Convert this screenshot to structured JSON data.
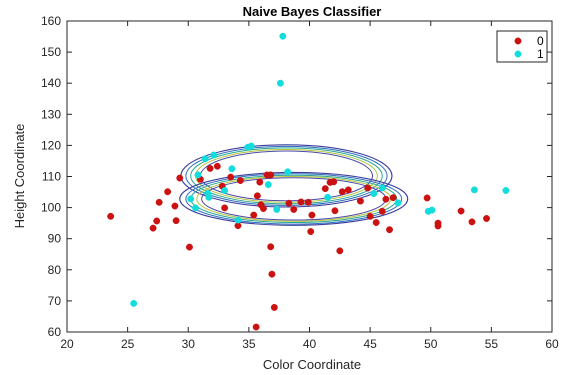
{
  "chart_data": {
    "type": "scatter",
    "title": "Naive Bayes Classifier",
    "xlabel": "Color Coordinate",
    "ylabel": "Height Coordinate",
    "xlim": [
      20,
      60
    ],
    "ylim": [
      60,
      160
    ],
    "xticks": [
      "20",
      "25",
      "30",
      "35",
      "40",
      "45",
      "50",
      "55",
      "60"
    ],
    "yticks": [
      "60",
      "70",
      "80",
      "90",
      "100",
      "110",
      "120",
      "130",
      "140",
      "150",
      "160"
    ],
    "grid": false,
    "legend_position": "top-right",
    "series": [
      {
        "name": "0",
        "color": "#cc1111",
        "marker": "filled-circle",
        "points": [
          [
            23.6,
            97.2
          ],
          [
            27.1,
            93.4
          ],
          [
            27.4,
            95.7
          ],
          [
            27.6,
            101.7
          ],
          [
            28.3,
            105.1
          ],
          [
            28.9,
            100.5
          ],
          [
            29.0,
            95.8
          ],
          [
            29.3,
            109.5
          ],
          [
            30.1,
            87.3
          ],
          [
            31.0,
            109.1
          ],
          [
            31.8,
            112.6
          ],
          [
            32.4,
            113.3
          ],
          [
            32.8,
            106.9
          ],
          [
            33.0,
            99.9
          ],
          [
            33.5,
            109.8
          ],
          [
            34.1,
            94.2
          ],
          [
            34.3,
            108.7
          ],
          [
            35.4,
            97.6
          ],
          [
            35.7,
            103.8
          ],
          [
            35.9,
            108.2
          ],
          [
            36.0,
            100.9
          ],
          [
            36.2,
            99.7
          ],
          [
            36.5,
            110.5
          ],
          [
            36.8,
            110.5
          ],
          [
            36.8,
            87.4
          ],
          [
            36.9,
            78.6
          ],
          [
            37.1,
            67.9
          ],
          [
            35.6,
            61.6
          ],
          [
            38.3,
            101.4
          ],
          [
            38.7,
            99.4
          ],
          [
            39.3,
            101.8
          ],
          [
            39.9,
            101.7
          ],
          [
            40.1,
            92.3
          ],
          [
            40.2,
            97.6
          ],
          [
            41.3,
            106.1
          ],
          [
            41.7,
            108.1
          ],
          [
            42.0,
            108.3
          ],
          [
            42.1,
            99.0
          ],
          [
            42.5,
            86.1
          ],
          [
            42.7,
            105.1
          ],
          [
            43.2,
            105.7
          ],
          [
            44.2,
            102.1
          ],
          [
            44.8,
            106.3
          ],
          [
            45.0,
            97.2
          ],
          [
            45.5,
            95.2
          ],
          [
            46.0,
            98.8
          ],
          [
            46.3,
            102.7
          ],
          [
            46.6,
            92.9
          ],
          [
            46.9,
            103.2
          ],
          [
            49.7,
            103.1
          ],
          [
            50.6,
            94.1
          ],
          [
            50.6,
            95.0
          ],
          [
            52.5,
            98.9
          ],
          [
            53.4,
            95.4
          ],
          [
            54.6,
            96.5
          ]
        ]
      },
      {
        "name": "1",
        "color": "#11dddd",
        "marker": "filled-circle",
        "points": [
          [
            25.5,
            69.2
          ],
          [
            30.2,
            102.8
          ],
          [
            30.6,
            99.9
          ],
          [
            30.8,
            110.5
          ],
          [
            31.4,
            115.7
          ],
          [
            31.6,
            104.6
          ],
          [
            31.7,
            103.3
          ],
          [
            32.1,
            116.9
          ],
          [
            33.0,
            105.5
          ],
          [
            33.6,
            112.5
          ],
          [
            34.1,
            96.0
          ],
          [
            34.9,
            119.4
          ],
          [
            35.2,
            119.8
          ],
          [
            36.6,
            107.4
          ],
          [
            37.3,
            99.4
          ],
          [
            37.6,
            140.0
          ],
          [
            37.8,
            155.1
          ],
          [
            38.2,
            111.5
          ],
          [
            41.5,
            103.3
          ],
          [
            45.3,
            104.5
          ],
          [
            46.0,
            106.3
          ],
          [
            47.3,
            101.5
          ],
          [
            49.8,
            98.8
          ],
          [
            50.1,
            99.2
          ],
          [
            53.6,
            105.7
          ],
          [
            56.2,
            105.5
          ]
        ]
      }
    ],
    "contour_styles": [
      {
        "color": "#3d3d9e",
        "width": 1.1
      },
      {
        "color": "#2f6fbf",
        "width": 1.0
      },
      {
        "color": "#27a68f",
        "width": 1.0
      },
      {
        "color": "#b5c23a",
        "width": 1.0
      },
      {
        "color": "#4a4aa8",
        "width": 1.0
      }
    ],
    "contours": [
      {
        "center": [
          38.1,
          110.2
        ],
        "rx": [
          8.7,
          8.3,
          7.9,
          7.5,
          7.1
        ],
        "ry": [
          10.0,
          9.5,
          9.0,
          8.5,
          8.0
        ]
      },
      {
        "center": [
          38.7,
          102.8
        ],
        "rx": [
          9.4,
          8.9,
          8.5,
          8.0,
          7.6
        ],
        "ry": [
          8.5,
          8.1,
          7.6,
          7.2,
          6.8
        ]
      }
    ]
  }
}
